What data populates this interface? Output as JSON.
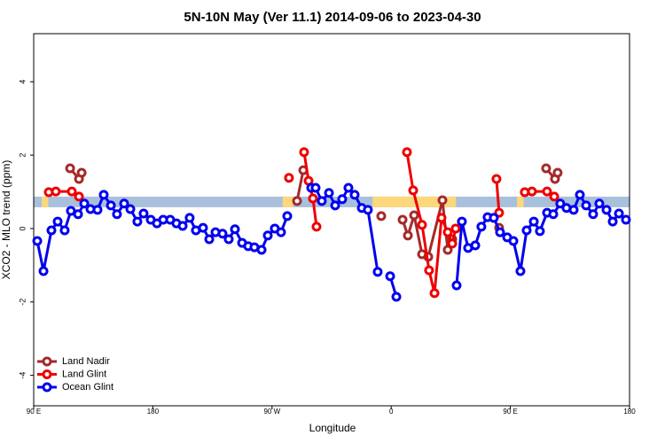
{
  "chart_data": {
    "type": "line",
    "title": "5N-10N May (Ver 11.1)   2014-09-06 to 2023-04-30",
    "xlabel": "Longitude",
    "ylabel": "XCO2 - MLO trend (ppm)",
    "xlim": [
      90,
      540
    ],
    "xticks": [
      {
        "value": 90,
        "label": "90 E"
      },
      180,
      {
        "value": 270,
        "label": "90 W"
      },
      {
        "value": 360,
        "label": "0"
      },
      {
        "value": 450,
        "label": "90 E"
      },
      {
        "value": 540,
        "label": "180"
      }
    ],
    "ylim": [
      -4.83,
      5.31
    ],
    "yticks": [
      -4,
      -2,
      0,
      2,
      4
    ],
    "legend": "bottom-left",
    "band": {
      "ylim": [
        0.58,
        0.87
      ],
      "color": "#a9c0dc",
      "land_spans": [
        [
          96,
          101
        ],
        [
          278,
          286
        ],
        [
          346,
          409
        ],
        [
          455,
          460
        ]
      ],
      "land_color": "#fcd77c"
    },
    "series": [
      {
        "name": "Land Nadir",
        "color": "#a52a2a",
        "x": [
          117.5,
          124.2,
          126.2,
          null,
          288.9,
          293.6,
          null,
          352.5,
          null,
          368.6,
          372.6,
          377.3,
          383.3,
          388.0,
          398.7,
          402.7,
          406.1,
          null,
          441.5,
          null,
          477.0,
          483.7,
          485.7
        ],
        "values": [
          1.64,
          1.35,
          1.52,
          null,
          0.75,
          1.59,
          null,
          0.34,
          null,
          0.24,
          -0.19,
          0.36,
          -0.7,
          -0.77,
          0.77,
          -0.58,
          -0.29,
          null,
          0.02,
          null,
          1.64,
          1.35,
          1.52
        ]
      },
      {
        "name": "Land Glint",
        "color": "#ee0000",
        "x": [
          101.4,
          106.7,
          118.8,
          124.2,
          null,
          282.8,
          null,
          294.2,
          297.6,
          300.9,
          303.6,
          null,
          371.9,
          376.6,
          383.3,
          388.6,
          392.7,
          398.0,
          402.7,
          406.1,
          408.7,
          null,
          439.5,
          441.5,
          null,
          460.9,
          466.3,
          477.7,
          483.1
        ],
        "values": [
          0.99,
          1.01,
          1.01,
          0.87,
          null,
          1.38,
          null,
          2.08,
          1.3,
          0.82,
          0.05,
          null,
          2.08,
          1.04,
          0.1,
          -1.14,
          -1.76,
          0.29,
          -0.1,
          -0.41,
          0,
          null,
          1.35,
          0.43,
          null,
          0.99,
          1.01,
          1.01,
          0.87
        ]
      },
      {
        "name": "Ocean Glint",
        "color": "#0000ee",
        "x": [
          92.7,
          97.4,
          103.4,
          108.1,
          113.4,
          118.1,
          123.5,
          128.2,
          132.9,
          138.2,
          142.9,
          148.3,
          152.9,
          158.3,
          163.0,
          168.3,
          173.0,
          178.4,
          183.1,
          187.8,
          193.1,
          197.8,
          202.5,
          207.8,
          212.5,
          217.9,
          222.6,
          227.3,
          232.6,
          237.3,
          242.0,
          247.4,
          252.0,
          256.7,
          262.1,
          266.8,
          272.1,
          276.8,
          281.5,
          null,
          299.6,
          302.9,
          307.6,
          313.0,
          317.7,
          323.0,
          327.7,
          332.4,
          337.8,
          342.4,
          349.8,
          null,
          359.2,
          363.9,
          null,
          409.4,
          413.4,
          418.1,
          423.5,
          428.1,
          432.8,
          437.5,
          442.2,
          447.6,
          452.3,
          457.6,
          462.3,
          467.7,
          472.3,
          477.7,
          482.4,
          487.7,
          492.4,
          497.8,
          502.5,
          507.2,
          512.5,
          517.2,
          522.6,
          527.3,
          532.0,
          537.3
        ],
        "values": [
          -0.34,
          -1.16,
          -0.05,
          0.19,
          -0.05,
          0.48,
          0.39,
          0.68,
          0.53,
          0.51,
          0.92,
          0.63,
          0.39,
          0.68,
          0.53,
          0.19,
          0.41,
          0.24,
          0.14,
          0.24,
          0.24,
          0.14,
          0.07,
          0.29,
          -0.05,
          0.02,
          -0.29,
          -0.1,
          -0.14,
          -0.29,
          -0.02,
          -0.39,
          -0.48,
          -0.51,
          -0.58,
          -0.19,
          0,
          -0.1,
          0.34,
          null,
          1.11,
          1.11,
          0.75,
          0.97,
          0.63,
          0.8,
          1.11,
          0.92,
          0.56,
          0.51,
          -1.18,
          null,
          -1.3,
          -1.86,
          null,
          -1.55,
          0.19,
          -0.53,
          -0.46,
          0.05,
          0.31,
          0.29,
          -0.1,
          -0.24,
          -0.34,
          -1.16,
          -0.05,
          0.19,
          -0.07,
          0.43,
          0.39,
          0.68,
          0.56,
          0.51,
          0.92,
          0.63,
          0.39,
          0.68,
          0.51,
          0.19,
          0.41,
          0.24
        ]
      }
    ]
  }
}
